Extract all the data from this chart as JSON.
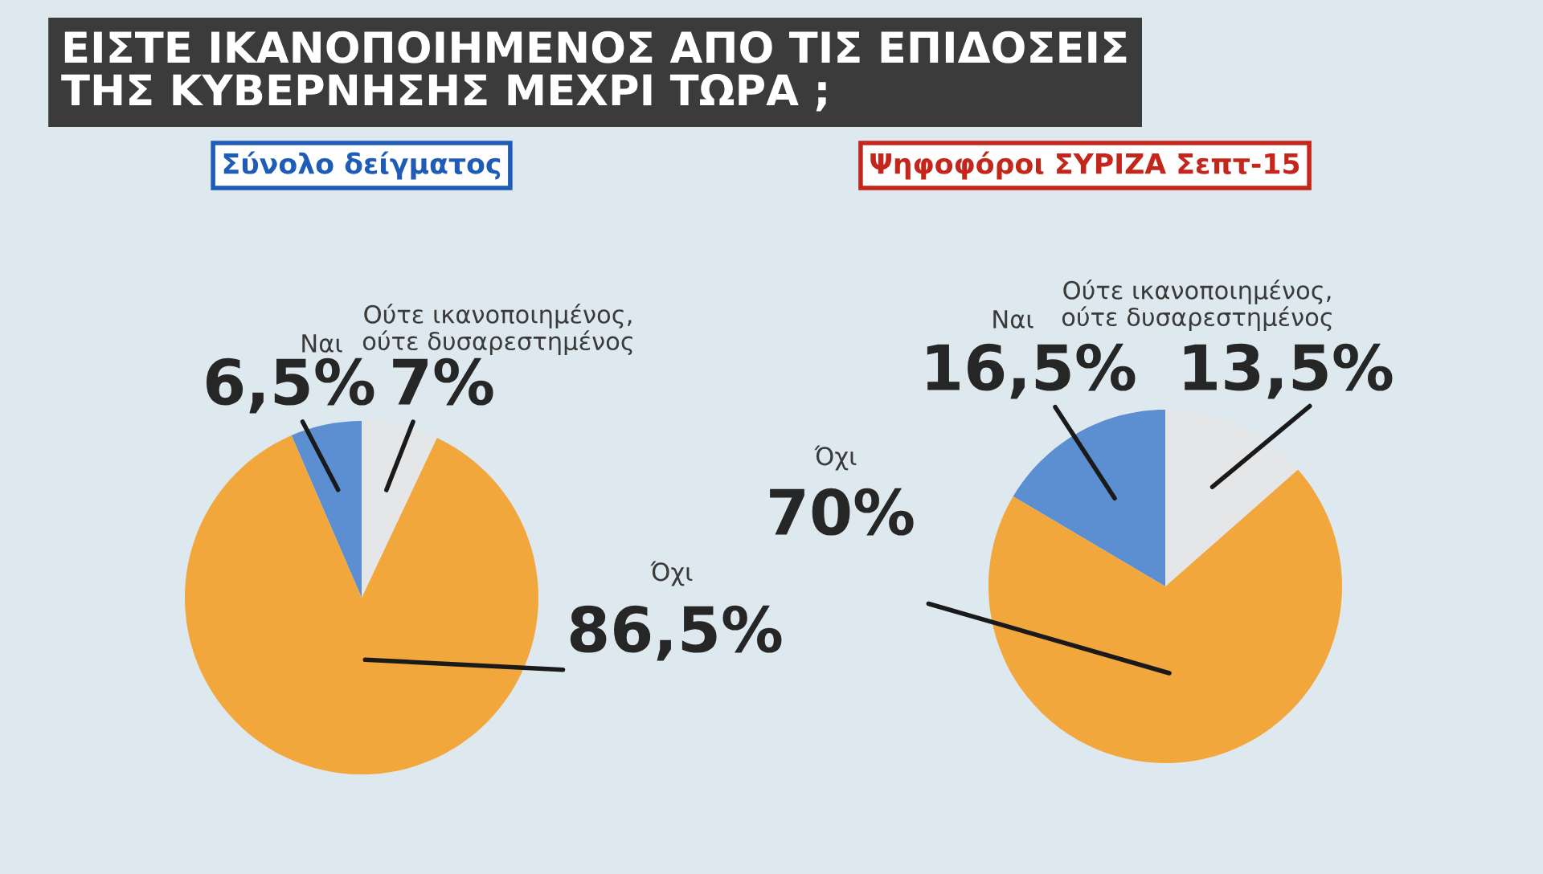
{
  "chart_data": [
    {
      "type": "pie",
      "title": "ΕΙΣΤΕ ΙΚΑΝΟΠΟΙΗΜΕΝΟΣ ΑΠΟ ΤΙΣ ΕΠΙΔΟΣΕΙΣ\nΤΗΣ ΚΥΒΕΡΝΗΣΗΣ ΜΕΧΡΙ ΤΩΡΑ ;",
      "subtitle": "Σύνολο δείγματος",
      "categories": [
        "Ναι",
        "Όχι",
        "Ούτε ικανοποιημένος,\nούτε δυσαρεστημένος"
      ],
      "values": [
        6.5,
        86.5,
        7
      ],
      "colors": [
        "#5b8fd2",
        "#f2a73c",
        "#e4e6e8"
      ],
      "value_labels": [
        "6,5%",
        "86,5%",
        "7%"
      ]
    },
    {
      "type": "pie",
      "subtitle": "Ψηφοφόροι ΣΥΡΙΖΑ Σεπτ-15",
      "categories": [
        "Ναι",
        "Όχι",
        "Ούτε ικανοποιημένος,\nούτε δυσαρεστημένος"
      ],
      "values": [
        16.5,
        70,
        13.5
      ],
      "colors": [
        "#5b8fd2",
        "#f2a73c",
        "#e4e6e8"
      ],
      "value_labels": [
        "16,5%",
        "70%",
        "13,5%"
      ]
    }
  ]
}
